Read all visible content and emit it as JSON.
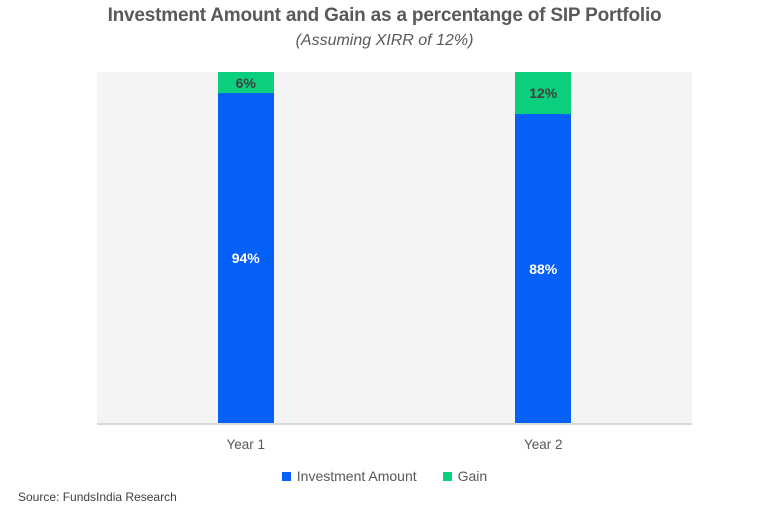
{
  "title": "Investment Amount and Gain as a percentange of SIP Portfolio",
  "subtitle": "(Assuming XIRR of 12%)",
  "source": "Source: FundsIndia Research",
  "colors": {
    "investment_blue": "#0561FA",
    "gain_green": "#0BCF7D",
    "plot_background": "#F4F4F4",
    "axis_line": "#D9D9D9",
    "title_text": "#595959",
    "dark_label": "#404040",
    "light_label": "#FFFFFF"
  },
  "chart_data": {
    "type": "bar",
    "stacked": true,
    "unit": "%",
    "title": "Investment Amount and Gain as a percentange of SIP Portfolio",
    "subtitle": "(Assuming XIRR of 12%)",
    "categories": [
      "Year 1",
      "Year 2"
    ],
    "series": [
      {
        "name": "Investment Amount",
        "values": [
          94,
          88
        ],
        "labels": [
          "94%",
          "88%"
        ],
        "color": "#0561FA",
        "label_color": "#FFFFFF"
      },
      {
        "name": "Gain",
        "values": [
          6,
          12
        ],
        "labels": [
          "6%",
          "12%"
        ],
        "color": "#0BCF7D",
        "label_color": "#404040"
      }
    ],
    "xlabel": "",
    "ylabel": "",
    "ylim": [
      0,
      100
    ],
    "grid": false,
    "y_axis_visible": false,
    "legend_position": "bottom"
  }
}
